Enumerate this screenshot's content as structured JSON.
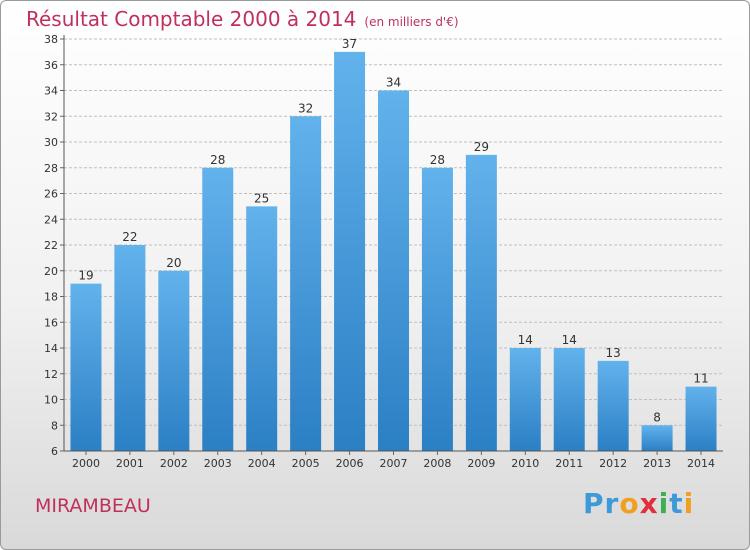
{
  "title": "Résultat Comptable 2000 à 2014",
  "subtitle": "(en milliers d'€)",
  "commune": "MIRAMBEAU",
  "logo_text": "Proxiti",
  "colors": {
    "title": "#c0305c",
    "bar_light": "#62b2ec",
    "bar_dark": "#2b7fc4",
    "grid": "#bfbfbf"
  },
  "chart_data": {
    "type": "bar",
    "title": "Résultat Comptable 2000 à 2014 (en milliers d'€)",
    "xlabel": "",
    "ylabel": "",
    "categories": [
      "2000",
      "2001",
      "2002",
      "2003",
      "2004",
      "2005",
      "2006",
      "2007",
      "2008",
      "2009",
      "2010",
      "2011",
      "2012",
      "2013",
      "2014"
    ],
    "values": [
      19,
      22,
      20,
      28,
      25,
      32,
      37,
      34,
      28,
      29,
      14,
      14,
      13,
      8,
      11
    ],
    "ylim": [
      6,
      38
    ],
    "yticks": [
      6,
      8,
      10,
      12,
      14,
      16,
      18,
      20,
      22,
      24,
      26,
      28,
      30,
      32,
      34,
      36,
      38
    ],
    "grid": true,
    "data_labels": true
  }
}
